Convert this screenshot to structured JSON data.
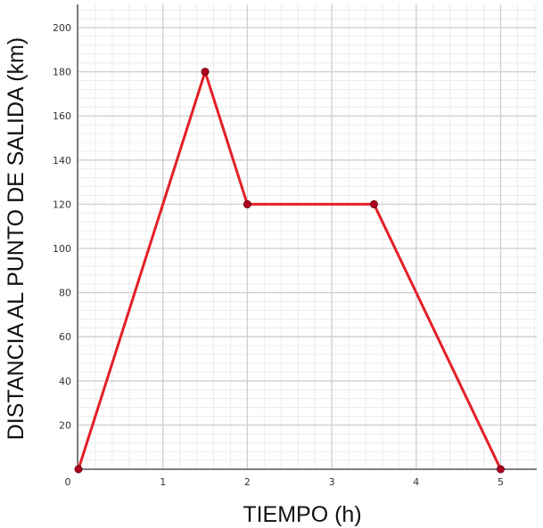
{
  "chart_data": {
    "type": "line",
    "title": "",
    "xlabel": "TIEMPO (h)",
    "ylabel": "DISTANCIA AL PUNTO DE SALIDA (km)",
    "xlim": [
      0,
      5.45
    ],
    "ylim": [
      0,
      210
    ],
    "x_ticks": [
      0,
      1,
      2,
      3,
      4,
      5
    ],
    "y_ticks": [
      20,
      40,
      60,
      80,
      100,
      120,
      140,
      160,
      180,
      200
    ],
    "x_tick_labels": [
      "0",
      "1",
      "2",
      "3",
      "4",
      "5"
    ],
    "y_tick_labels": [
      "20",
      "40",
      "60",
      "80",
      "100",
      "120",
      "140",
      "160",
      "180",
      "200"
    ],
    "minor_x_step": 0.2,
    "minor_y_step": 4,
    "grid": true,
    "series": [
      {
        "x": [
          0,
          1.5,
          2,
          3.5,
          5
        ],
        "y": [
          0,
          180,
          120,
          120,
          0
        ],
        "color": "#e41f26"
      }
    ],
    "marker_color": "#b00020",
    "major_grid_color": "#cfcfcf",
    "minor_grid_color": "#ececec",
    "axis_color": "#555555"
  }
}
